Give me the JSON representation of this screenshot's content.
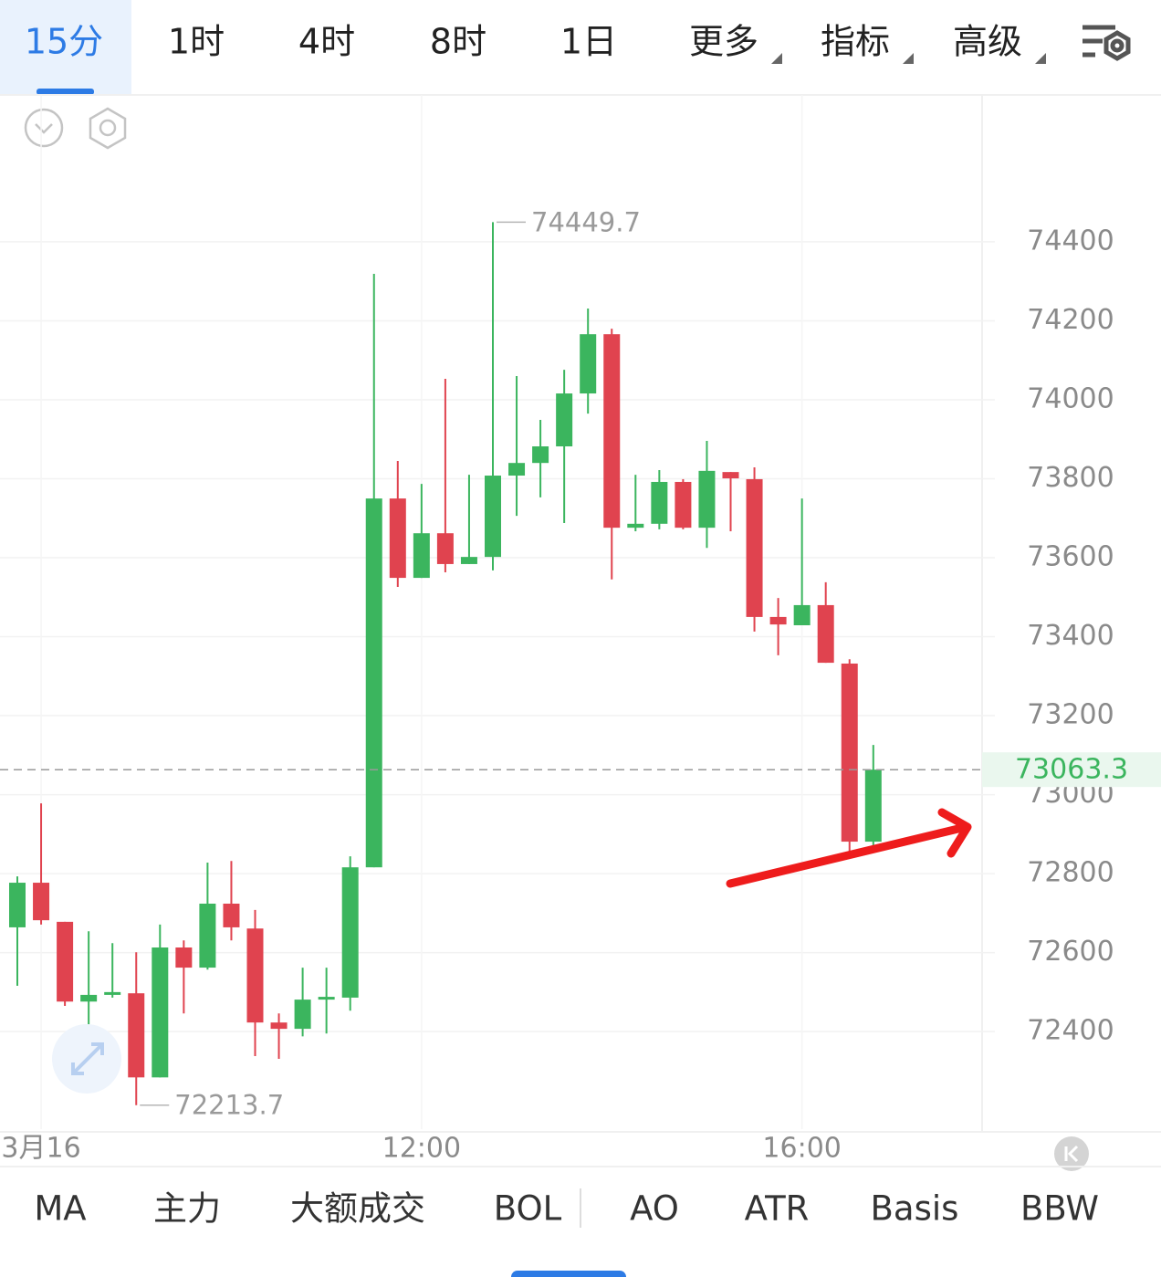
{
  "tabs": {
    "timeframes": [
      "15分",
      "1时",
      "4时",
      "8时",
      "1日"
    ],
    "menus": [
      "更多",
      "指标",
      "高级"
    ]
  },
  "chart_data": {
    "type": "candlestick",
    "categories": [
      null,
      "3月16",
      null,
      null,
      null,
      null,
      null,
      null,
      null,
      null,
      null,
      null,
      null,
      null,
      null,
      null,
      null,
      "12:00",
      null,
      null,
      null,
      null,
      null,
      null,
      null,
      null,
      null,
      null,
      null,
      null,
      null,
      null,
      null,
      "16:00",
      null,
      null,
      null
    ],
    "up_color": "#3bb55e",
    "down_color": "#e0434f",
    "open": [
      72664,
      72777,
      72678,
      72476,
      72493,
      72497,
      72284,
      72613,
      72562,
      72724,
      72661,
      72423,
      72407,
      72481,
      72486,
      72816,
      73750,
      73549,
      73662,
      73584,
      73602,
      73808,
      73840,
      73882,
      74016,
      74166,
      73676,
      73686,
      73792,
      73676,
      73817,
      73799,
      73450,
      73429,
      73480,
      73332,
      72881
    ],
    "high": [
      72793,
      72978,
      72678,
      72654,
      72624,
      72601,
      72671,
      72631,
      72828,
      72832,
      72708,
      72446,
      72562,
      72562,
      72844,
      74319,
      73845,
      73787,
      74053,
      73810,
      74449.7,
      74060,
      73949,
      74076,
      74231,
      74180,
      73810,
      73822,
      73799,
      73896,
      73817,
      73829,
      73498,
      73750,
      73538,
      73343,
      73126
    ],
    "low": [
      72516,
      72671,
      72465,
      72418,
      72486,
      72213.7,
      72284,
      72446,
      72557,
      72631,
      72338,
      72331,
      72388,
      72395,
      72453,
      72816,
      73526,
      73549,
      73563,
      73584,
      73568,
      73706,
      73753,
      73688,
      73965,
      73545,
      73667,
      73672,
      73672,
      73625,
      73667,
      73413,
      73353,
      73429,
      73334,
      72851,
      72869
    ],
    "close": [
      72777,
      72682,
      72476,
      72493,
      72500,
      72284,
      72613,
      72562,
      72724,
      72664,
      72423,
      72407,
      72481,
      72488,
      72816,
      73750,
      73549,
      73662,
      73584,
      73602,
      73808,
      73840,
      73882,
      74016,
      74166,
      73676,
      73686,
      73792,
      73676,
      73820,
      73801,
      73450,
      73431,
      73480,
      73334,
      72881,
      73063.3
    ],
    "ylim": [
      72153,
      74772
    ],
    "yticks": [
      72400,
      72600,
      72800,
      73000,
      73200,
      73400,
      73600,
      73800,
      74000,
      74200,
      74400
    ],
    "grid": true
  },
  "indicators": [
    "MA",
    "主力",
    "大额成交",
    "BOL",
    "AO",
    "ATR",
    "Basis",
    "BBW"
  ]
}
